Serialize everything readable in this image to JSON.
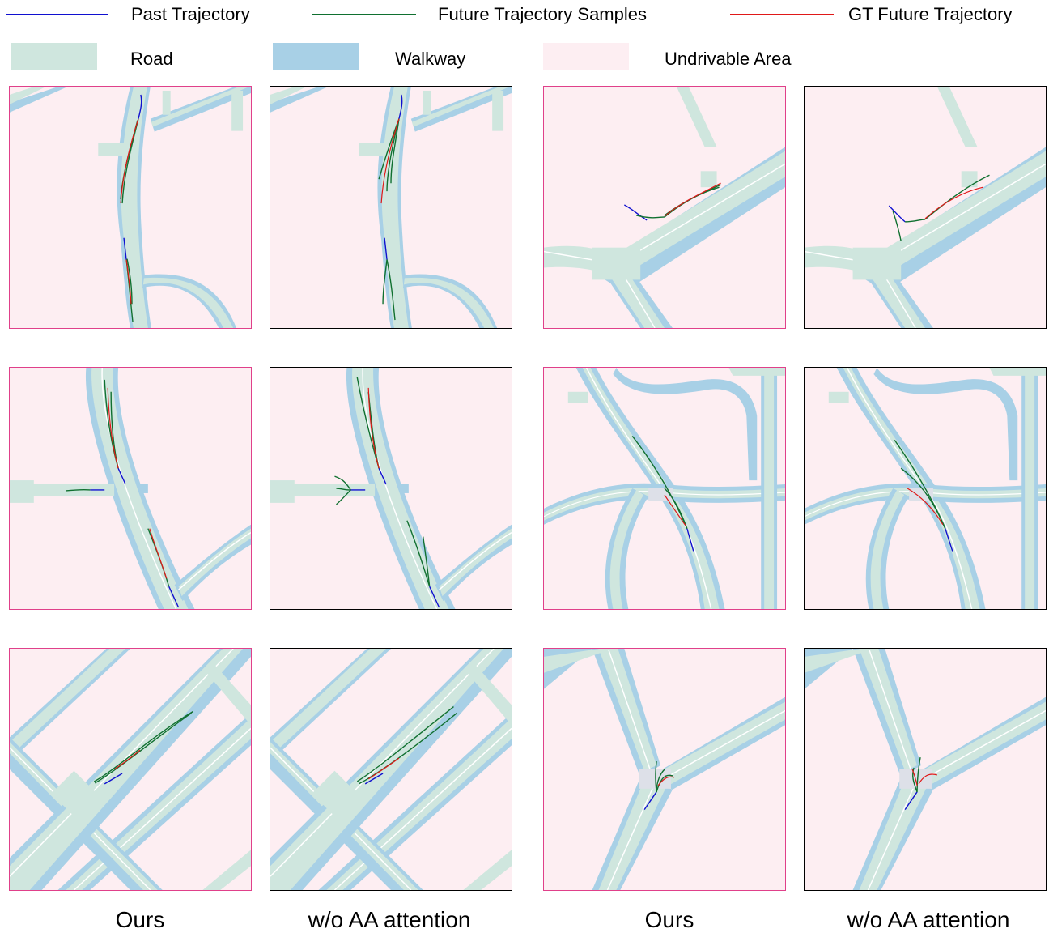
{
  "colors": {
    "past": "#1010d0",
    "future": "#107030",
    "gt": "#e01818",
    "road": "#cfe6de",
    "walkway": "#a8d0e6",
    "undrivable": "#fdeef2",
    "lane": "#ffffff",
    "crossing": "#dde0e8",
    "ours_border": "#e0408a",
    "baseline_border": "#000000"
  },
  "legend": {
    "past_label": "Past Trajectory",
    "future_label": "Future Trajectory Samples",
    "gt_label": "GT Future Trajectory",
    "road_label": "Road",
    "walkway_label": "Walkway",
    "undrivable_label": "Undrivable Area"
  },
  "captions": [
    "Ours",
    "w/o AA attention",
    "Ours",
    "w/o AA attention"
  ]
}
